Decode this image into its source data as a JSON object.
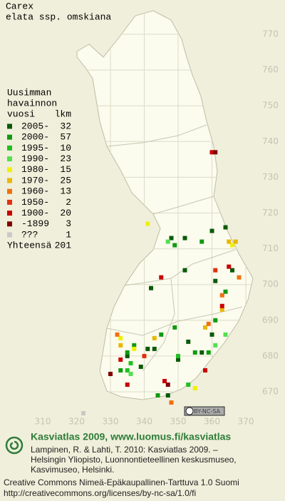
{
  "title": [
    "Carex",
    "elata ssp. omskiana"
  ],
  "legend": {
    "header": [
      "Uusimman",
      "havainnon",
      "vuosi"
    ],
    "count_header": "lkm",
    "rows": [
      {
        "label": "2005-",
        "count": 32,
        "color": "#0a5a0a",
        "points": [
          [
            348,
            713
          ],
          [
            352,
            713
          ],
          [
            360,
            715
          ],
          [
            364,
            716
          ],
          [
            352,
            704
          ],
          [
            342,
            699
          ],
          [
            361,
            701
          ],
          [
            343,
            682
          ],
          [
            341,
            682
          ],
          [
            353,
            684
          ],
          [
            335,
            680
          ],
          [
            360,
            686
          ],
          [
            366,
            704
          ],
          [
            350,
            679
          ],
          [
            347,
            669
          ],
          [
            357,
            681
          ],
          [
            339,
            677
          ]
        ]
      },
      {
        "label": "2000-",
        "count": 57,
        "color": "#109a10",
        "points": [
          [
            349,
            711
          ],
          [
            357,
            712
          ],
          [
            335,
            681
          ],
          [
            337,
            683
          ],
          [
            355,
            681
          ],
          [
            345,
            686
          ],
          [
            364,
            698
          ],
          [
            361,
            690
          ],
          [
            349,
            688
          ],
          [
            333,
            676
          ],
          [
            359,
            681
          ],
          [
            344,
            669
          ]
        ]
      },
      {
        "label": "1995-",
        "count": 10,
        "color": "#20c020",
        "points": [
          [
            336,
            678
          ],
          [
            335,
            676
          ],
          [
            350,
            680
          ],
          [
            353,
            672
          ]
        ]
      },
      {
        "label": "1990-",
        "count": 23,
        "color": "#50e050",
        "points": [
          [
            347,
            712
          ],
          [
            336,
            675
          ],
          [
            364,
            686
          ],
          [
            361,
            683
          ],
          [
            358,
            676
          ]
        ]
      },
      {
        "label": "1980-",
        "count": 15,
        "color": "#f0f000",
        "points": [
          [
            341,
            717
          ],
          [
            366,
            711
          ],
          [
            333,
            685
          ],
          [
            337,
            682
          ],
          [
            355,
            671
          ]
        ]
      },
      {
        "label": "1970-",
        "count": 25,
        "color": "#e8b800",
        "points": [
          [
            365,
            712
          ],
          [
            333,
            683
          ],
          [
            343,
            685
          ],
          [
            358,
            688
          ],
          [
            363,
            693
          ],
          [
            367,
            712
          ]
        ]
      },
      {
        "label": "1960-",
        "count": 13,
        "color": "#f07010",
        "points": [
          [
            368,
            702
          ],
          [
            359,
            689
          ],
          [
            363,
            697
          ],
          [
            348,
            667
          ],
          [
            332,
            686
          ]
        ]
      },
      {
        "label": "1950-",
        "count": 2,
        "color": "#e03010",
        "points": [
          [
            361,
            704
          ],
          [
            340,
            680
          ]
        ]
      },
      {
        "label": "1900-",
        "count": 20,
        "color": "#c80000",
        "points": [
          [
            360,
            737
          ],
          [
            365,
            705
          ],
          [
            345,
            702
          ],
          [
            358,
            676
          ],
          [
            346,
            673
          ],
          [
            333,
            679
          ],
          [
            335,
            672
          ],
          [
            363,
            694
          ]
        ]
      },
      {
        "label": "-1899",
        "count": 3,
        "color": "#800000",
        "points": [
          [
            361,
            737
          ],
          [
            330,
            675
          ],
          [
            347,
            672
          ]
        ]
      },
      {
        "label": "???",
        "count": 1,
        "color": "#c8c8c8",
        "points": [
          [
            322,
            664
          ]
        ]
      }
    ],
    "total_label": "Yhteensä",
    "total": 201
  },
  "grid": {
    "xlim": [
      310,
      370
    ],
    "ylim": [
      670,
      770
    ],
    "xticks": [
      310,
      320,
      330,
      340,
      350,
      360,
      370
    ],
    "yticks": [
      670,
      680,
      690,
      700,
      710,
      720,
      730,
      740,
      750,
      760,
      770
    ]
  },
  "license_badge": "BY-NC-SA",
  "footer": {
    "brand": "Kasviatlas 2009, www.luomus.fi/kasviatlas",
    "citation": [
      "Lampinen, R. & Lahti, T. 2010: Kasviatlas 2009. –",
      "Helsingin Yliopisto, Luonnontieteellinen keskusmuseo,",
      "Kasvimuseo, Helsinki."
    ],
    "license": [
      "Creative Commons Nimeä-Epäkaupallinen-Tarttuva 1.0 Suomi",
      "http://creativecommons.org/licenses/by-nc-sa/1.0/fi"
    ]
  }
}
